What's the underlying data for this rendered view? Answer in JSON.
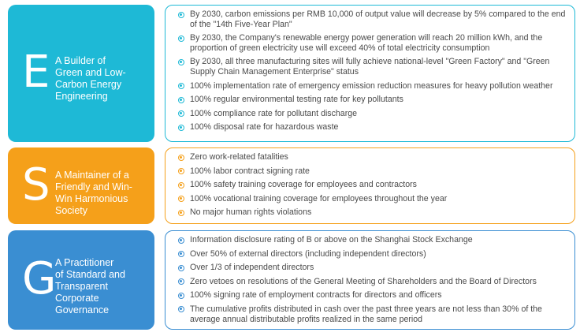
{
  "sections": [
    {
      "letter": "E",
      "title_lines": [
        "A Builder of",
        "Green and Low-",
        "Carbon Energy",
        "Engineering"
      ],
      "color": "#1eb9d6",
      "items": [
        "By 2030, carbon emissions per RMB 10,000 of output value will decrease by 5% compared to the end of the \"14th Five-Year Plan\"",
        "By 2030, the Company's renewable energy power generation will reach 20 million kWh, and the proportion of green electricity use will exceed 40% of total electricity consumption",
        "By 2030, all three manufacturing sites will fully achieve national-level \"Green Factory\" and \"Green Supply Chain Management Enterprise\" status",
        "100% implementation rate of emergency emission reduction measures for heavy pollution weather",
        "100% regular environmental testing rate for key pollutants",
        "100% compliance rate for pollutant discharge",
        "100% disposal rate for hazardous waste"
      ]
    },
    {
      "letter": "S",
      "title_lines": [
        "A Maintainer of a",
        "Friendly and Win-",
        "Win Harmonious",
        "Society"
      ],
      "color": "#f5a01a",
      "items": [
        "Zero work-related fatalities",
        "100% labor contract signing rate",
        "100% safety training coverage for employees and contractors",
        "100% vocational training coverage for employees throughout the year",
        "No major human rights violations"
      ]
    },
    {
      "letter": "G",
      "title_lines": [
        "A Practitioner",
        "of Standard and",
        "Transparent",
        "Corporate",
        "Governance"
      ],
      "color": "#3a8ed2",
      "items": [
        "Information disclosure rating of B or above on the Shanghai Stock Exchange",
        "Over 50% of external directors (including independent directors)",
        "Over 1/3 of independent directors",
        "Zero vetoes on resolutions of the General Meeting of Shareholders and the Board of Directors",
        "100% signing rate of employment contracts for directors and officers",
        "The cumulative profits distributed in cash over the past three years are not less than 30% of the average annual distributable profits realized in the same period"
      ]
    }
  ]
}
